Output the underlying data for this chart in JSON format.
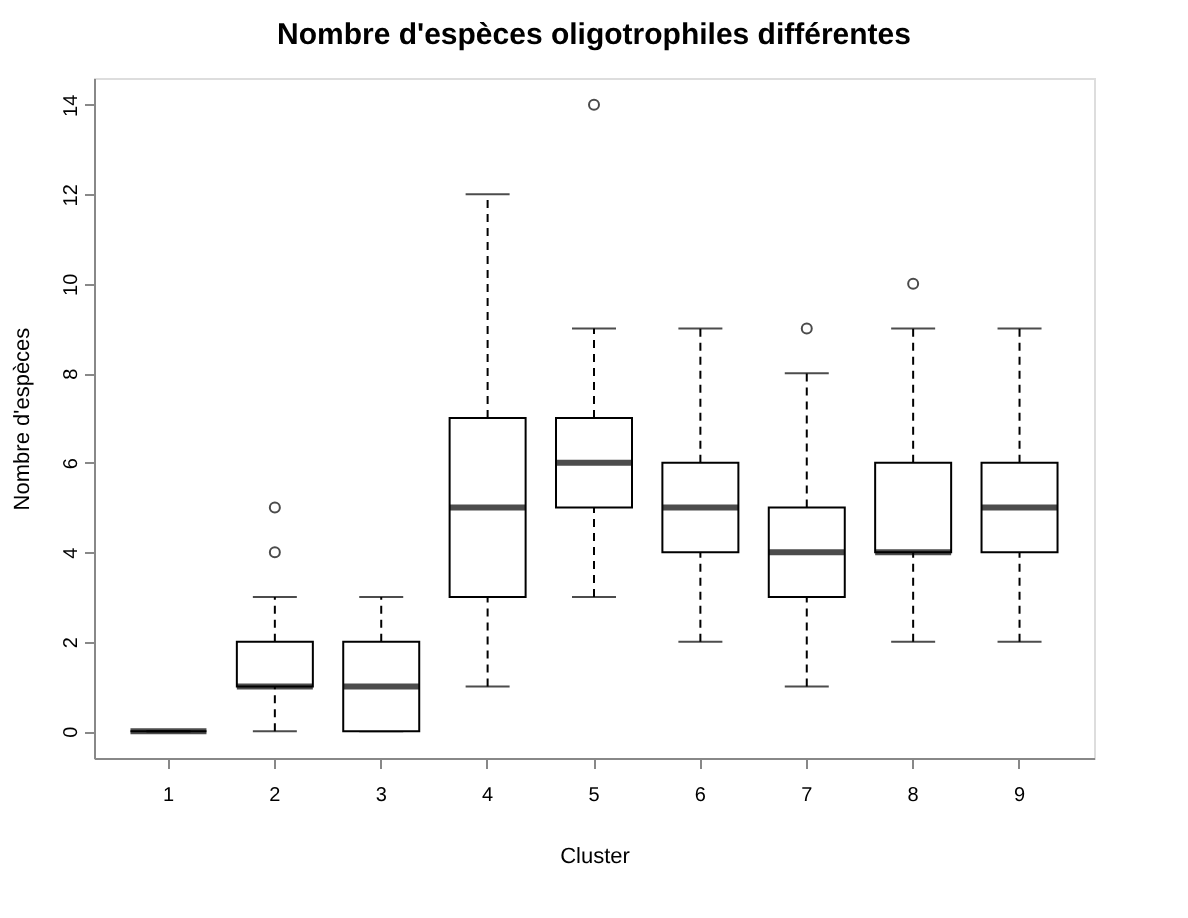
{
  "chart_data": {
    "type": "box",
    "title": "Nombre d'espèces oligotrophiles différentes",
    "xlabel": "Cluster",
    "ylabel": "Nombre d'espèces",
    "categories": [
      "1",
      "2",
      "3",
      "4",
      "5",
      "6",
      "7",
      "8",
      "9"
    ],
    "boxes": [
      {
        "low": 0,
        "q1": 0,
        "median": 0,
        "q3": 0,
        "high": 0
      },
      {
        "low": 0,
        "q1": 1,
        "median": 1,
        "q3": 2,
        "high": 3,
        "outliers": [
          4,
          5
        ]
      },
      {
        "low": 0,
        "q1": 0,
        "median": 1,
        "q3": 2,
        "high": 3
      },
      {
        "low": 1,
        "q1": 3,
        "median": 5,
        "q3": 7,
        "high": 12
      },
      {
        "low": 3,
        "q1": 5,
        "median": 6,
        "q3": 7,
        "high": 9,
        "outliers": [
          14
        ]
      },
      {
        "low": 2,
        "q1": 4,
        "median": 5,
        "q3": 6,
        "high": 9
      },
      {
        "low": 1,
        "q1": 3,
        "median": 4,
        "q3": 5,
        "high": 8,
        "outliers": [
          9
        ]
      },
      {
        "low": 2,
        "q1": 4,
        "median": 4,
        "q3": 6,
        "high": 9,
        "outliers": [
          10
        ]
      },
      {
        "low": 2,
        "q1": 4,
        "median": 5,
        "q3": 6,
        "high": 9
      }
    ],
    "ylim": [
      -0.6,
      14.6
    ],
    "yticks": [
      0,
      2,
      4,
      6,
      8,
      10,
      12,
      14
    ]
  }
}
